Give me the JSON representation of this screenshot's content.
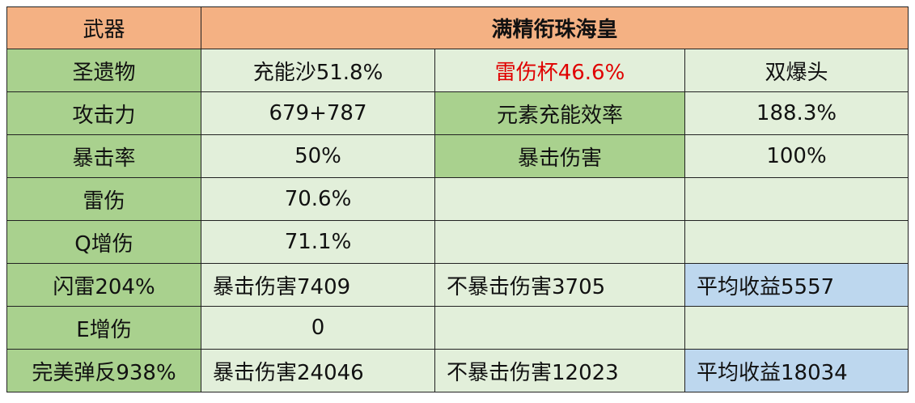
{
  "header": {
    "label": "武器",
    "weapon": "满精衔珠海皇"
  },
  "rows": [
    {
      "label": "圣遗物",
      "cells": [
        "充能沙51.8%",
        "雷伤杯46.6%",
        "双爆头"
      ]
    },
    {
      "label": "攻击力",
      "cells": [
        "679+787",
        "元素充能效率",
        "188.3%"
      ]
    },
    {
      "label": "暴击率",
      "cells": [
        "50%",
        "暴击伤害",
        "100%"
      ]
    },
    {
      "label": "雷伤",
      "cells": [
        "70.6%"
      ]
    },
    {
      "label": "Q增伤",
      "cells": [
        "71.1%"
      ]
    },
    {
      "label": "闪雷204%",
      "cells": [
        "暴击伤害7409",
        "不暴击伤害3705",
        "平均收益5557"
      ]
    },
    {
      "label": "E增伤",
      "cells": [
        "0"
      ]
    },
    {
      "label": "完美弹反938%",
      "cells": [
        "暴击伤害24046",
        "不暴击伤害12023",
        "平均收益18034"
      ]
    }
  ]
}
